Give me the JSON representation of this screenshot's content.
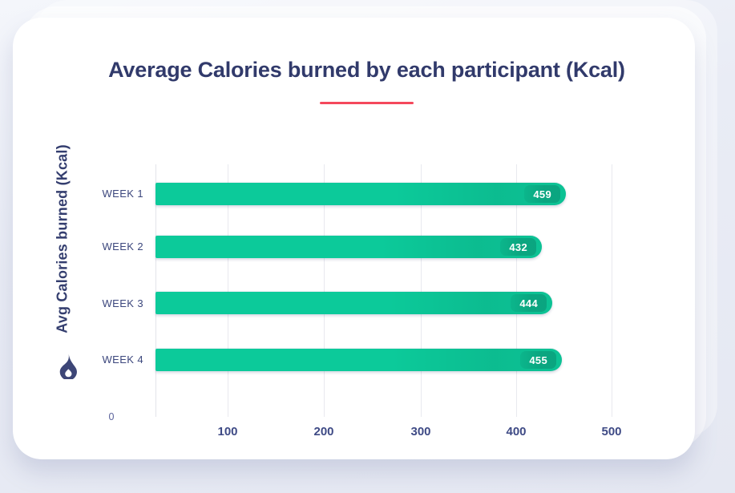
{
  "page": {
    "background_color": "#e9ecf5",
    "card_color": "#ffffff"
  },
  "card": {
    "title": "Average Calories burned by each participant (Kcal)",
    "accent_underline_color": "#f4485c"
  },
  "icons": {
    "flame": {
      "name": "flame-icon",
      "color": "#3d4677"
    }
  },
  "chart_data": {
    "type": "bar",
    "orientation": "horizontal",
    "title": "Average Calories burned by each participant (Kcal)",
    "ylabel": "Avg Calories burned (Kcal)",
    "xlabel": "",
    "categories": [
      "WEEK 1",
      "WEEK 2",
      "WEEK 3",
      "WEEK 4"
    ],
    "values": [
      459,
      432,
      444,
      455
    ],
    "x_ticks": [
      "0",
      "100",
      "200",
      "300",
      "400",
      "500"
    ],
    "xlim": [
      0,
      500
    ],
    "grid": true,
    "legend": false,
    "bar_color": "#0cca9a",
    "bar_label_color": "#ffffff",
    "label_color": "#3c477d"
  }
}
